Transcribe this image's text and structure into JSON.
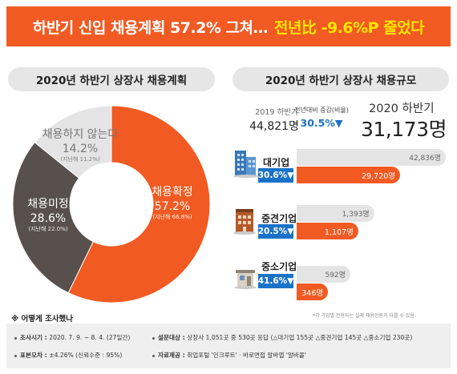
{
  "banner": {
    "text_main": "하반기 신입 채용계획 57.2% 그쳐…",
    "text_highlight": "전년比 -9.6%P 줄었다"
  },
  "left_panel_title": "2020년 하반기 상장사 채용계획",
  "right_panel_title": "2020년 하반기 상장사 채용규모",
  "colors": {
    "orange": "#f15a22",
    "dark_gray": "#57504c",
    "light_gray": "#e4e4e4",
    "blue": "#1a72c8"
  },
  "chart_data": [
    {
      "type": "pie",
      "slices": [
        {
          "label": "채용확정",
          "value": 57.2,
          "value_text": "57.2%",
          "prev_text": "(지난해 66.8%)",
          "color": "#f15a22"
        },
        {
          "label": "채용미정",
          "value": 28.6,
          "value_text": "28.6%",
          "prev_text": "(지난해 22.0%)",
          "color": "#57504c"
        },
        {
          "label": "채용하지 않는다",
          "value": 14.2,
          "value_text": "14.2%",
          "prev_text": "(지난해 11.2%)",
          "color": "#e4e4e4"
        }
      ]
    },
    {
      "type": "bar",
      "summary": {
        "label_2019": "2019 하반기",
        "value_2019": "44,821명",
        "yoy_label": "전년대비 증감(비율)",
        "yoy_value": "30.5%▼",
        "label_2020": "2020 하반기",
        "value_2020": "31,173명"
      },
      "categories": [
        "대기업",
        "중견기업",
        "중소기업"
      ],
      "yoy": [
        "30.6%",
        "20.5%",
        "41.6%"
      ],
      "series": [
        {
          "values": [
            42836,
            1393,
            592
          ],
          "labels": [
            "42,836명",
            "1,393명",
            "592명"
          ],
          "color": "#e4e4e4"
        },
        {
          "values": [
            29720,
            1107,
            346
          ],
          "labels": [
            "29,720명",
            "1,107명",
            "346명"
          ],
          "color": "#f15a22"
        }
      ],
      "footnote": "*각 기업별 전형자는 실제 채용인원과 다를 수 있음"
    }
  ],
  "method": {
    "title": "※ 어떻게 조사했나",
    "period_label": "조사시기 : ",
    "period_value": "2020. 7. 9. ~ 8. 4. (27일간)",
    "target_label": "설문대상 : ",
    "target_value": "상장사 1,051곳 중 530곳 응답 (△대기업 155곳 △중견기업 145곳 △중소기업 230곳)",
    "error_label": "표본오차 : ",
    "error_value": "±4.26% (신뢰수준 : 95%)",
    "source_label": "자료제공 : ",
    "source_value": "취업포털 '인크루트' · 바로면접 알바앱 '알바콜'"
  }
}
